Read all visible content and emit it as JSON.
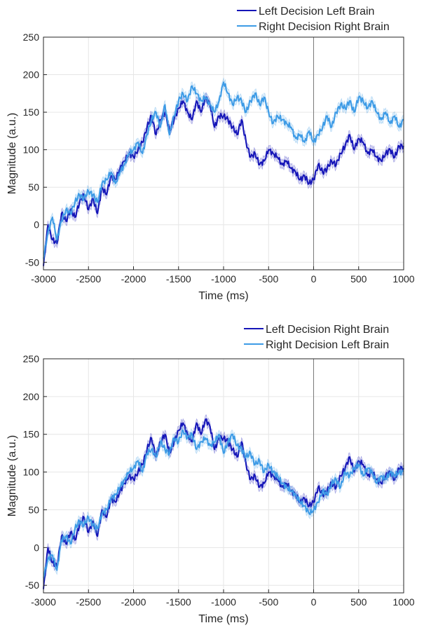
{
  "chart_data": [
    {
      "type": "line",
      "xlabel": "Time (ms)",
      "ylabel": "Magnitude (a.u.)",
      "xlim": [
        -3000,
        1000
      ],
      "ylim": [
        -60,
        250
      ],
      "xticks": [
        -3000,
        -2500,
        -2000,
        -1500,
        -1000,
        -500,
        0,
        500,
        1000
      ],
      "yticks": [
        -50,
        0,
        50,
        100,
        150,
        200,
        250
      ],
      "xtick_labels": [
        "-3000",
        "-2500",
        "-2000",
        "-1500",
        "-1000",
        "-500",
        "0",
        "500",
        "1000"
      ],
      "ytick_labels": [
        "-50",
        "0",
        "50",
        "100",
        "150",
        "200",
        "250"
      ],
      "grid": true,
      "vertical_line_x": 0,
      "shaded_error_band": true,
      "legend_position": "top-right-outside",
      "series": [
        {
          "name": "Left Decision Left Brain",
          "color": "#1515b8",
          "x": [
            -3000,
            -2950,
            -2900,
            -2850,
            -2800,
            -2750,
            -2700,
            -2650,
            -2600,
            -2550,
            -2500,
            -2450,
            -2400,
            -2350,
            -2300,
            -2250,
            -2200,
            -2150,
            -2100,
            -2050,
            -2000,
            -1950,
            -1900,
            -1850,
            -1800,
            -1750,
            -1700,
            -1650,
            -1600,
            -1550,
            -1500,
            -1450,
            -1400,
            -1350,
            -1300,
            -1250,
            -1200,
            -1150,
            -1100,
            -1050,
            -1000,
            -950,
            -900,
            -850,
            -800,
            -750,
            -700,
            -650,
            -600,
            -550,
            -500,
            -450,
            -400,
            -350,
            -300,
            -250,
            -200,
            -150,
            -100,
            -50,
            0,
            50,
            100,
            150,
            200,
            250,
            300,
            350,
            400,
            450,
            500,
            550,
            600,
            650,
            700,
            750,
            800,
            850,
            900,
            950,
            1000
          ],
          "values": [
            -55,
            0,
            -20,
            -25,
            15,
            5,
            20,
            10,
            30,
            40,
            20,
            35,
            15,
            50,
            40,
            65,
            60,
            75,
            85,
            95,
            90,
            100,
            110,
            130,
            145,
            120,
            140,
            150,
            125,
            140,
            155,
            165,
            150,
            140,
            165,
            150,
            170,
            160,
            130,
            145,
            145,
            140,
            130,
            120,
            140,
            110,
            90,
            95,
            80,
            85,
            100,
            95,
            90,
            80,
            85,
            75,
            70,
            60,
            65,
            55,
            60,
            80,
            70,
            75,
            85,
            80,
            95,
            105,
            120,
            100,
            115,
            110,
            95,
            100,
            90,
            85,
            95,
            100,
            90,
            105,
            105
          ]
        },
        {
          "name": "Right Decision Right Brain",
          "color": "#3d9be6",
          "x": [
            -3000,
            -2950,
            -2900,
            -2850,
            -2800,
            -2750,
            -2700,
            -2650,
            -2600,
            -2550,
            -2500,
            -2450,
            -2400,
            -2350,
            -2300,
            -2250,
            -2200,
            -2150,
            -2100,
            -2050,
            -2000,
            -1950,
            -1900,
            -1850,
            -1800,
            -1750,
            -1700,
            -1650,
            -1600,
            -1550,
            -1500,
            -1450,
            -1400,
            -1350,
            -1300,
            -1250,
            -1200,
            -1150,
            -1100,
            -1050,
            -1000,
            -950,
            -900,
            -850,
            -800,
            -750,
            -700,
            -650,
            -600,
            -550,
            -500,
            -450,
            -400,
            -350,
            -300,
            -250,
            -200,
            -150,
            -100,
            -50,
            0,
            50,
            100,
            150,
            200,
            250,
            300,
            350,
            400,
            450,
            500,
            550,
            600,
            650,
            700,
            750,
            800,
            850,
            900,
            950,
            1000
          ],
          "values": [
            -45,
            -10,
            10,
            -20,
            5,
            20,
            15,
            30,
            40,
            35,
            45,
            40,
            30,
            55,
            60,
            70,
            55,
            70,
            80,
            95,
            100,
            110,
            95,
            120,
            140,
            150,
            130,
            160,
            120,
            145,
            165,
            175,
            165,
            185,
            175,
            165,
            170,
            160,
            150,
            165,
            190,
            175,
            160,
            170,
            165,
            150,
            165,
            175,
            160,
            170,
            150,
            135,
            145,
            140,
            135,
            130,
            115,
            120,
            110,
            125,
            110,
            120,
            130,
            145,
            130,
            150,
            160,
            155,
            165,
            150,
            170,
            165,
            155,
            165,
            150,
            140,
            150,
            135,
            145,
            130,
            140
          ]
        }
      ]
    },
    {
      "type": "line",
      "xlabel": "Time (ms)",
      "ylabel": "Magnitude (a.u.)",
      "xlim": [
        -3000,
        1000
      ],
      "ylim": [
        -60,
        250
      ],
      "xticks": [
        -3000,
        -2500,
        -2000,
        -1500,
        -1000,
        -500,
        0,
        500,
        1000
      ],
      "yticks": [
        -50,
        0,
        50,
        100,
        150,
        200,
        250
      ],
      "xtick_labels": [
        "-3000",
        "-2500",
        "-2000",
        "-1500",
        "-1000",
        "-500",
        "0",
        "500",
        "1000"
      ],
      "ytick_labels": [
        "-50",
        "0",
        "50",
        "100",
        "150",
        "200",
        "250"
      ],
      "grid": true,
      "vertical_line_x": 0,
      "shaded_error_band": true,
      "legend_position": "top-right-outside",
      "series": [
        {
          "name": "Left Decision Right Brain",
          "color": "#1515b8",
          "x": [
            -3000,
            -2950,
            -2900,
            -2850,
            -2800,
            -2750,
            -2700,
            -2650,
            -2600,
            -2550,
            -2500,
            -2450,
            -2400,
            -2350,
            -2300,
            -2250,
            -2200,
            -2150,
            -2100,
            -2050,
            -2000,
            -1950,
            -1900,
            -1850,
            -1800,
            -1750,
            -1700,
            -1650,
            -1600,
            -1550,
            -1500,
            -1450,
            -1400,
            -1350,
            -1300,
            -1250,
            -1200,
            -1150,
            -1100,
            -1050,
            -1000,
            -950,
            -900,
            -850,
            -800,
            -750,
            -700,
            -650,
            -600,
            -550,
            -500,
            -450,
            -400,
            -350,
            -300,
            -250,
            -200,
            -150,
            -100,
            -50,
            0,
            50,
            100,
            150,
            200,
            250,
            300,
            350,
            400,
            450,
            500,
            550,
            600,
            650,
            700,
            750,
            800,
            850,
            900,
            950,
            1000
          ],
          "values": [
            -55,
            0,
            -20,
            -25,
            15,
            5,
            20,
            10,
            30,
            40,
            20,
            35,
            15,
            50,
            40,
            65,
            60,
            75,
            85,
            95,
            90,
            100,
            110,
            130,
            145,
            120,
            140,
            150,
            125,
            140,
            155,
            165,
            150,
            140,
            165,
            150,
            170,
            160,
            130,
            145,
            145,
            140,
            130,
            120,
            140,
            110,
            90,
            95,
            80,
            85,
            100,
            95,
            90,
            80,
            85,
            75,
            70,
            60,
            65,
            55,
            60,
            80,
            70,
            75,
            85,
            80,
            95,
            105,
            120,
            100,
            115,
            110,
            95,
            100,
            90,
            85,
            95,
            100,
            90,
            105,
            105
          ]
        },
        {
          "name": "Right Decision Left Brain",
          "color": "#3d9be6",
          "x": [
            -3000,
            -2950,
            -2900,
            -2850,
            -2800,
            -2750,
            -2700,
            -2650,
            -2600,
            -2550,
            -2500,
            -2450,
            -2400,
            -2350,
            -2300,
            -2250,
            -2200,
            -2150,
            -2100,
            -2050,
            -2000,
            -1950,
            -1900,
            -1850,
            -1800,
            -1750,
            -1700,
            -1650,
            -1600,
            -1550,
            -1500,
            -1450,
            -1400,
            -1350,
            -1300,
            -1250,
            -1200,
            -1150,
            -1100,
            -1050,
            -1000,
            -950,
            -900,
            -850,
            -800,
            -750,
            -700,
            -650,
            -600,
            -550,
            -500,
            -450,
            -400,
            -350,
            -300,
            -250,
            -200,
            -150,
            -100,
            -50,
            0,
            50,
            100,
            150,
            200,
            250,
            300,
            350,
            400,
            450,
            500,
            550,
            600,
            650,
            700,
            750,
            800,
            850,
            900,
            950,
            1000
          ],
          "values": [
            -40,
            -15,
            -10,
            -30,
            10,
            15,
            5,
            25,
            35,
            30,
            40,
            30,
            25,
            45,
            50,
            65,
            70,
            80,
            90,
            100,
            105,
            115,
            100,
            125,
            130,
            120,
            140,
            130,
            125,
            145,
            140,
            155,
            145,
            150,
            130,
            140,
            145,
            135,
            140,
            150,
            125,
            140,
            150,
            135,
            130,
            120,
            125,
            110,
            115,
            100,
            110,
            100,
            95,
            85,
            80,
            75,
            70,
            60,
            55,
            45,
            50,
            60,
            75,
            70,
            85,
            90,
            80,
            100,
            95,
            105,
            110,
            95,
            105,
            100,
            85,
            95,
            90,
            100,
            95,
            100,
            100
          ]
        }
      ]
    }
  ]
}
